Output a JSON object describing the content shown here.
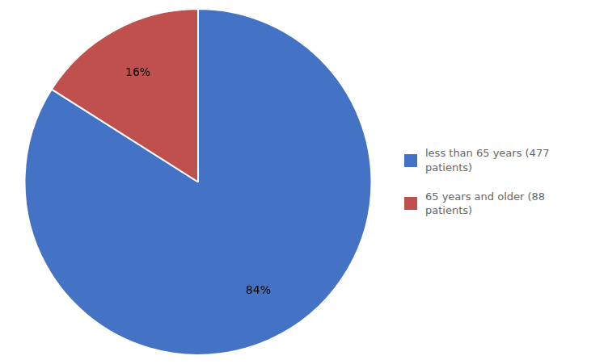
{
  "chart_data": {
    "type": "pie",
    "categories": [
      "less than 65 years (477\npatients)",
      "65 years and older (88\npatients)"
    ],
    "values": [
      84,
      16
    ],
    "value_labels": [
      "84%",
      "16%"
    ],
    "colors": [
      "#4472C4",
      "#C0504D"
    ],
    "data_labels": true,
    "legend": "right"
  }
}
